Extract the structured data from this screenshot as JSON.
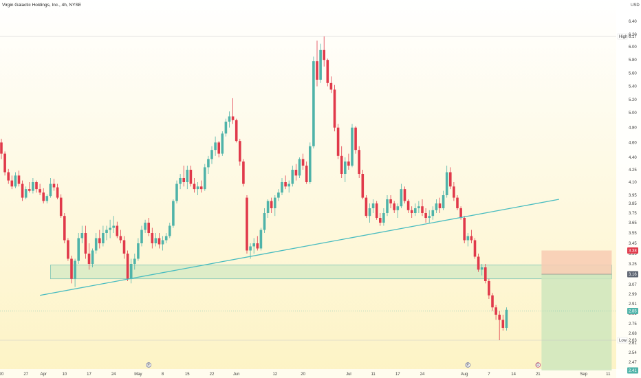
{
  "header": {
    "title": "Virgin Galactic Holdings, Inc., 4h, NYSE",
    "currency": "USD"
  },
  "price_axis": {
    "ticks": [
      "6.40",
      "6.20",
      "6.00",
      "5.80",
      "5.60",
      "5.40",
      "5.20",
      "5.00",
      "4.80",
      "4.60",
      "4.40",
      "4.25",
      "4.10",
      "3.95",
      "3.85",
      "3.75",
      "3.65",
      "3.55",
      "3.45",
      "3.35",
      "3.25",
      "3.16",
      "3.07",
      "2.99",
      "2.91",
      "2.83",
      "2.75",
      "2.68",
      "2.61",
      "2.54",
      "2.47",
      "2.40"
    ],
    "high_label": "High",
    "high_value": "6.17",
    "low_label": "Low",
    "low_value": "2.63",
    "tags": {
      "stop": "3.38",
      "entry": "3.16",
      "current": "2.85",
      "target": "2.41"
    }
  },
  "time_axis": {
    "labels": [
      {
        "t": 0,
        "text": "20"
      },
      {
        "t": 7,
        "text": "27"
      },
      {
        "t": 12,
        "text": "Apr"
      },
      {
        "t": 18,
        "text": "10"
      },
      {
        "t": 25,
        "text": "17"
      },
      {
        "t": 32,
        "text": "24"
      },
      {
        "t": 39,
        "text": "May"
      },
      {
        "t": 46,
        "text": "8"
      },
      {
        "t": 53,
        "text": "15"
      },
      {
        "t": 60,
        "text": "22"
      },
      {
        "t": 67,
        "text": "Jun"
      },
      {
        "t": 78,
        "text": "12"
      },
      {
        "t": 86,
        "text": "20"
      },
      {
        "t": 99,
        "text": "Jul"
      },
      {
        "t": 106,
        "text": "11"
      },
      {
        "t": 113,
        "text": "17"
      },
      {
        "t": 120,
        "text": "24"
      },
      {
        "t": 132,
        "text": "Aug"
      },
      {
        "t": 139,
        "text": "7"
      },
      {
        "t": 146,
        "text": "14"
      },
      {
        "t": 153,
        "text": "21"
      },
      {
        "t": 166,
        "text": "Sep"
      },
      {
        "t": 173,
        "text": "11"
      }
    ],
    "event_markers": [
      {
        "t": 42,
        "text": "E"
      },
      {
        "t": 133,
        "text": "E"
      },
      {
        "t": 153,
        "text": "D"
      }
    ]
  },
  "colors": {
    "up": "#4fb3a9",
    "down": "#e0394a",
    "trendline": "#48bcc0",
    "zone_fill": "#cde8c2",
    "zone_stroke": "#7cc4b4",
    "risk_fill": "#f8cbb3",
    "reward_fill": "#cfe6bd",
    "bg_top": "#ffffff",
    "bg_bottom": "#fdf3c4"
  },
  "chart_data": {
    "type": "candlestick",
    "title": "Virgin Galactic Holdings, Inc., 4h, NYSE",
    "ylabel": "USD",
    "ylim": [
      2.4,
      6.45
    ],
    "high": 6.17,
    "low": 2.63,
    "candles": [
      [
        4.6,
        4.65,
        4.38,
        4.45
      ],
      [
        4.45,
        4.48,
        4.18,
        4.22
      ],
      [
        4.22,
        4.26,
        4.08,
        4.12
      ],
      [
        4.12,
        4.18,
        4.02,
        4.05
      ],
      [
        4.05,
        4.22,
        4.03,
        4.18
      ],
      [
        4.18,
        4.24,
        4.05,
        4.08
      ],
      [
        4.08,
        4.12,
        3.88,
        3.92
      ],
      [
        3.92,
        4.05,
        3.9,
        4.02
      ],
      [
        4.02,
        4.1,
        3.98,
        4.0
      ],
      [
        4.0,
        4.15,
        3.97,
        4.1
      ],
      [
        4.1,
        4.12,
        3.98,
        4.02
      ],
      [
        4.02,
        4.08,
        3.95,
        3.98
      ],
      [
        3.98,
        4.03,
        3.85,
        3.88
      ],
      [
        3.88,
        3.96,
        3.85,
        3.94
      ],
      [
        3.94,
        4.15,
        3.92,
        4.08
      ],
      [
        4.08,
        4.14,
        4.0,
        4.04
      ],
      [
        4.04,
        4.08,
        3.9,
        3.92
      ],
      [
        3.92,
        3.96,
        3.7,
        3.72
      ],
      [
        3.72,
        3.75,
        3.45,
        3.48
      ],
      [
        3.48,
        3.5,
        3.28,
        3.3
      ],
      [
        3.3,
        3.33,
        3.08,
        3.12
      ],
      [
        3.12,
        3.3,
        3.05,
        3.28
      ],
      [
        3.28,
        3.55,
        3.25,
        3.5
      ],
      [
        3.5,
        3.62,
        3.45,
        3.55
      ],
      [
        3.55,
        3.62,
        3.3,
        3.35
      ],
      [
        3.35,
        3.45,
        3.2,
        3.25
      ],
      [
        3.25,
        3.4,
        3.22,
        3.38
      ],
      [
        3.38,
        3.55,
        3.35,
        3.5
      ],
      [
        3.5,
        3.58,
        3.4,
        3.45
      ],
      [
        3.45,
        3.62,
        3.42,
        3.55
      ],
      [
        3.55,
        3.62,
        3.48,
        3.58
      ],
      [
        3.58,
        3.68,
        3.5,
        3.6
      ],
      [
        3.6,
        3.72,
        3.55,
        3.62
      ],
      [
        3.62,
        3.66,
        3.5,
        3.52
      ],
      [
        3.52,
        3.58,
        3.45,
        3.48
      ],
      [
        3.48,
        3.52,
        3.3,
        3.35
      ],
      [
        3.35,
        3.38,
        3.1,
        3.12
      ],
      [
        3.12,
        3.3,
        3.08,
        3.25
      ],
      [
        3.25,
        3.35,
        3.2,
        3.3
      ],
      [
        3.3,
        3.5,
        3.28,
        3.45
      ],
      [
        3.45,
        3.62,
        3.42,
        3.58
      ],
      [
        3.58,
        3.68,
        3.55,
        3.65
      ],
      [
        3.65,
        3.7,
        3.52,
        3.55
      ],
      [
        3.55,
        3.6,
        3.4,
        3.45
      ],
      [
        3.45,
        3.55,
        3.42,
        3.5
      ],
      [
        3.5,
        3.55,
        3.4,
        3.44
      ],
      [
        3.44,
        3.52,
        3.38,
        3.48
      ],
      [
        3.48,
        3.55,
        3.45,
        3.52
      ],
      [
        3.52,
        3.65,
        3.5,
        3.62
      ],
      [
        3.62,
        3.9,
        3.6,
        3.88
      ],
      [
        3.88,
        4.12,
        3.85,
        4.08
      ],
      [
        4.08,
        4.2,
        4.02,
        4.15
      ],
      [
        4.15,
        4.3,
        4.05,
        4.1
      ],
      [
        4.1,
        4.3,
        4.02,
        4.25
      ],
      [
        4.25,
        4.3,
        4.05,
        4.08
      ],
      [
        4.08,
        4.15,
        3.98,
        4.02
      ],
      [
        4.02,
        4.1,
        3.95,
        4.05
      ],
      [
        4.05,
        4.12,
        3.98,
        4.02
      ],
      [
        4.02,
        4.32,
        4.0,
        4.28
      ],
      [
        4.28,
        4.42,
        4.2,
        4.38
      ],
      [
        4.38,
        4.55,
        4.32,
        4.5
      ],
      [
        4.5,
        4.68,
        4.42,
        4.6
      ],
      [
        4.6,
        4.62,
        4.4,
        4.45
      ],
      [
        4.45,
        4.75,
        4.42,
        4.72
      ],
      [
        4.72,
        4.92,
        4.68,
        4.88
      ],
      [
        4.88,
        5.02,
        4.8,
        4.95
      ],
      [
        4.95,
        5.22,
        4.85,
        4.9
      ],
      [
        4.9,
        4.92,
        4.6,
        4.62
      ],
      [
        4.62,
        4.65,
        4.3,
        4.35
      ],
      [
        4.35,
        4.38,
        4.05,
        4.08
      ],
      [
        3.92,
        3.95,
        3.35,
        3.38
      ],
      [
        3.38,
        3.45,
        3.3,
        3.42
      ],
      [
        3.42,
        3.5,
        3.35,
        3.45
      ],
      [
        3.45,
        3.52,
        3.38,
        3.4
      ],
      [
        3.4,
        3.6,
        3.38,
        3.58
      ],
      [
        3.58,
        3.8,
        3.55,
        3.75
      ],
      [
        3.75,
        3.9,
        3.7,
        3.88
      ],
      [
        3.88,
        3.92,
        3.75,
        3.8
      ],
      [
        3.8,
        3.95,
        3.72,
        3.92
      ],
      [
        3.92,
        4.02,
        3.88,
        3.98
      ],
      [
        3.98,
        4.15,
        3.95,
        4.1
      ],
      [
        4.1,
        4.18,
        4.02,
        4.05
      ],
      [
        4.05,
        4.12,
        3.98,
        4.08
      ],
      [
        4.08,
        4.3,
        4.05,
        4.25
      ],
      [
        4.25,
        4.32,
        4.12,
        4.18
      ],
      [
        4.18,
        4.4,
        4.15,
        4.38
      ],
      [
        4.38,
        4.45,
        4.25,
        4.3
      ],
      [
        4.3,
        4.35,
        4.08,
        4.1
      ],
      [
        4.1,
        4.6,
        4.08,
        4.55
      ],
      [
        4.55,
        5.85,
        4.52,
        5.78
      ],
      [
        5.78,
        6.1,
        5.4,
        5.5
      ],
      [
        5.5,
        6.05,
        5.45,
        5.95
      ],
      [
        5.95,
        6.17,
        5.7,
        5.8
      ],
      [
        5.8,
        5.82,
        5.4,
        5.45
      ],
      [
        5.45,
        5.55,
        5.3,
        5.35
      ],
      [
        5.35,
        5.42,
        4.75,
        4.8
      ],
      [
        4.8,
        4.85,
        4.38,
        4.42
      ],
      [
        4.42,
        4.55,
        4.15,
        4.2
      ],
      [
        4.2,
        4.4,
        4.1,
        4.35
      ],
      [
        4.35,
        4.45,
        4.25,
        4.3
      ],
      [
        4.3,
        4.85,
        4.28,
        4.8
      ],
      [
        4.8,
        4.82,
        4.45,
        4.5
      ],
      [
        4.5,
        4.55,
        4.15,
        4.2
      ],
      [
        4.2,
        4.25,
        3.9,
        3.92
      ],
      [
        3.92,
        3.95,
        3.7,
        3.72
      ],
      [
        3.72,
        3.85,
        3.65,
        3.8
      ],
      [
        3.8,
        3.9,
        3.75,
        3.85
      ],
      [
        3.85,
        3.88,
        3.68,
        3.7
      ],
      [
        3.7,
        3.75,
        3.62,
        3.65
      ],
      [
        3.65,
        3.8,
        3.62,
        3.75
      ],
      [
        3.75,
        3.95,
        3.72,
        3.9
      ],
      [
        3.9,
        3.95,
        3.8,
        3.85
      ],
      [
        3.85,
        3.88,
        3.75,
        3.78
      ],
      [
        3.78,
        3.85,
        3.7,
        3.82
      ],
      [
        3.82,
        4.08,
        3.8,
        4.02
      ],
      [
        4.02,
        4.05,
        3.85,
        3.88
      ],
      [
        3.88,
        3.9,
        3.75,
        3.78
      ],
      [
        3.78,
        3.82,
        3.7,
        3.75
      ],
      [
        3.75,
        3.85,
        3.72,
        3.8
      ],
      [
        3.8,
        3.88,
        3.75,
        3.82
      ],
      [
        3.82,
        3.9,
        3.72,
        3.75
      ],
      [
        3.75,
        3.8,
        3.65,
        3.7
      ],
      [
        3.7,
        3.78,
        3.65,
        3.72
      ],
      [
        3.72,
        3.82,
        3.68,
        3.78
      ],
      [
        3.78,
        3.9,
        3.75,
        3.85
      ],
      [
        3.85,
        3.92,
        3.75,
        3.8
      ],
      [
        3.8,
        4.0,
        3.78,
        3.95
      ],
      [
        3.95,
        4.3,
        3.92,
        4.22
      ],
      [
        4.22,
        4.28,
        4.02,
        4.05
      ],
      [
        4.05,
        4.1,
        3.88,
        3.92
      ],
      [
        3.92,
        3.95,
        3.78,
        3.8
      ],
      [
        3.8,
        3.82,
        3.68,
        3.7
      ],
      [
        3.7,
        3.72,
        3.45,
        3.48
      ],
      [
        3.48,
        3.55,
        3.42,
        3.52
      ],
      [
        3.52,
        3.58,
        3.45,
        3.48
      ],
      [
        3.48,
        3.5,
        3.3,
        3.32
      ],
      [
        3.32,
        3.35,
        3.18,
        3.2
      ],
      [
        3.2,
        3.25,
        3.15,
        3.22
      ],
      [
        3.22,
        3.25,
        3.08,
        3.1
      ],
      [
        3.1,
        3.12,
        2.95,
        2.98
      ],
      [
        2.98,
        3.0,
        2.85,
        2.88
      ],
      [
        2.88,
        2.9,
        2.78,
        2.82
      ],
      [
        2.82,
        2.85,
        2.63,
        2.78
      ],
      [
        2.78,
        2.82,
        2.7,
        2.72
      ],
      [
        2.72,
        2.88,
        2.7,
        2.86
      ]
    ],
    "support_zone": {
      "y_low": 3.12,
      "y_high": 3.24,
      "t_start": 14,
      "t_end": 174
    },
    "trendline": {
      "t1": 11,
      "p1": 2.98,
      "t2": 159,
      "p2": 3.9
    },
    "position": {
      "entry": 3.16,
      "stop": 3.38,
      "target": 2.41,
      "t_start": 154,
      "t_end": 174
    },
    "current_price": 2.85,
    "high_line": 6.17,
    "low_line": 2.63
  }
}
